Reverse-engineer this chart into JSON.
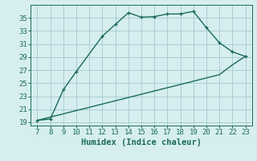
{
  "title": "",
  "xlabel": "Humidex (Indice chaleur)",
  "ylabel": "",
  "line1_x": [
    7,
    8,
    9,
    10,
    12,
    13,
    14,
    15,
    16,
    17,
    18,
    19,
    20,
    21,
    22,
    23
  ],
  "line1_y": [
    19.3,
    19.5,
    24.0,
    26.8,
    32.2,
    34.0,
    35.8,
    35.1,
    35.2,
    35.6,
    35.6,
    36.0,
    33.5,
    31.2,
    29.8,
    29.1
  ],
  "line2_x": [
    7,
    8,
    9,
    10,
    11,
    12,
    13,
    14,
    15,
    16,
    17,
    18,
    19,
    20,
    21,
    22,
    23
  ],
  "line2_y": [
    19.3,
    19.8,
    20.3,
    20.8,
    21.3,
    21.8,
    22.3,
    22.8,
    23.3,
    23.8,
    24.3,
    24.8,
    25.3,
    25.8,
    26.3,
    27.8,
    29.1
  ],
  "line_color": "#1a6b5a",
  "bg_color": "#d6eef0",
  "grid_color": "#aacdd1",
  "xlim": [
    6.5,
    23.5
  ],
  "ylim": [
    18.5,
    37.0
  ],
  "xticks": [
    7,
    8,
    9,
    10,
    11,
    12,
    13,
    14,
    15,
    16,
    17,
    18,
    19,
    20,
    21,
    22,
    23
  ],
  "yticks": [
    19,
    21,
    23,
    25,
    27,
    29,
    31,
    33,
    35
  ],
  "tick_label_size": 6.5,
  "xlabel_size": 7.5
}
